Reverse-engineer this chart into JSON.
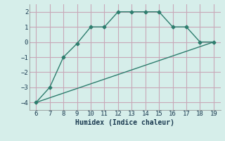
{
  "line1_x": [
    6,
    7,
    8,
    9,
    10,
    11,
    12,
    13,
    14,
    15,
    16,
    17,
    18,
    19
  ],
  "line1_y": [
    -4,
    -3,
    -1,
    -0.1,
    1,
    1,
    2,
    2,
    2,
    2,
    1,
    1,
    0,
    0
  ],
  "line2_x": [
    6,
    19
  ],
  "line2_y": [
    -4,
    0
  ],
  "line_color": "#2e7d6e",
  "bg_color": "#d6eeea",
  "grid_color_major": "#c8c8d8",
  "grid_color_minor": "#e0d8e0",
  "xlabel": "Humidex (Indice chaleur)",
  "xlim": [
    5.5,
    19.5
  ],
  "ylim": [
    -4.5,
    2.5
  ],
  "xticks": [
    6,
    7,
    8,
    9,
    10,
    11,
    12,
    13,
    14,
    15,
    16,
    17,
    18,
    19
  ],
  "yticks": [
    -4,
    -3,
    -2,
    -1,
    0,
    1,
    2
  ],
  "marker": "D",
  "markersize": 2.5,
  "tick_color": "#1a3a50",
  "xlabel_color": "#1a3a50"
}
